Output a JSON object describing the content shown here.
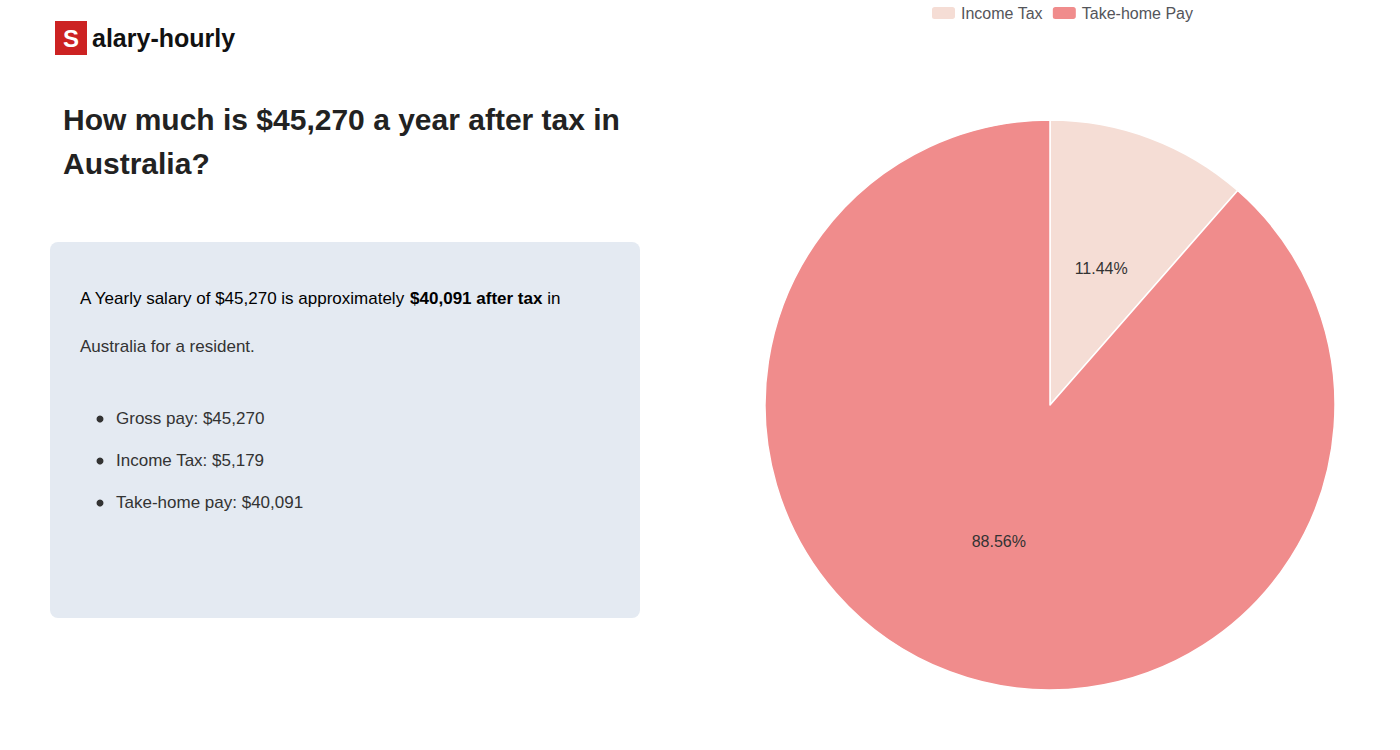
{
  "chart_data": {
    "type": "pie",
    "title": "How much is $45,270 a year after tax in\nAustralia?",
    "categories": [
      "Income Tax",
      "Take-home Pay"
    ],
    "values": [
      11.44,
      88.56
    ],
    "value_labels": [
      "11.44%",
      "88.56%"
    ],
    "colors": [
      "#f5ddd5",
      "#f08c8c"
    ],
    "data_labels": true,
    "legend": "top",
    "annotations": [
      "S",
      "alary-hourly",
      "A Yearly salary of $45,270 is approximately ",
      "$40,091 after tax",
      " in",
      "Australia for a resident.",
      "Gross pay: $45,270",
      "Income Tax: $5,179",
      "Take-home pay: $40,091"
    ]
  }
}
